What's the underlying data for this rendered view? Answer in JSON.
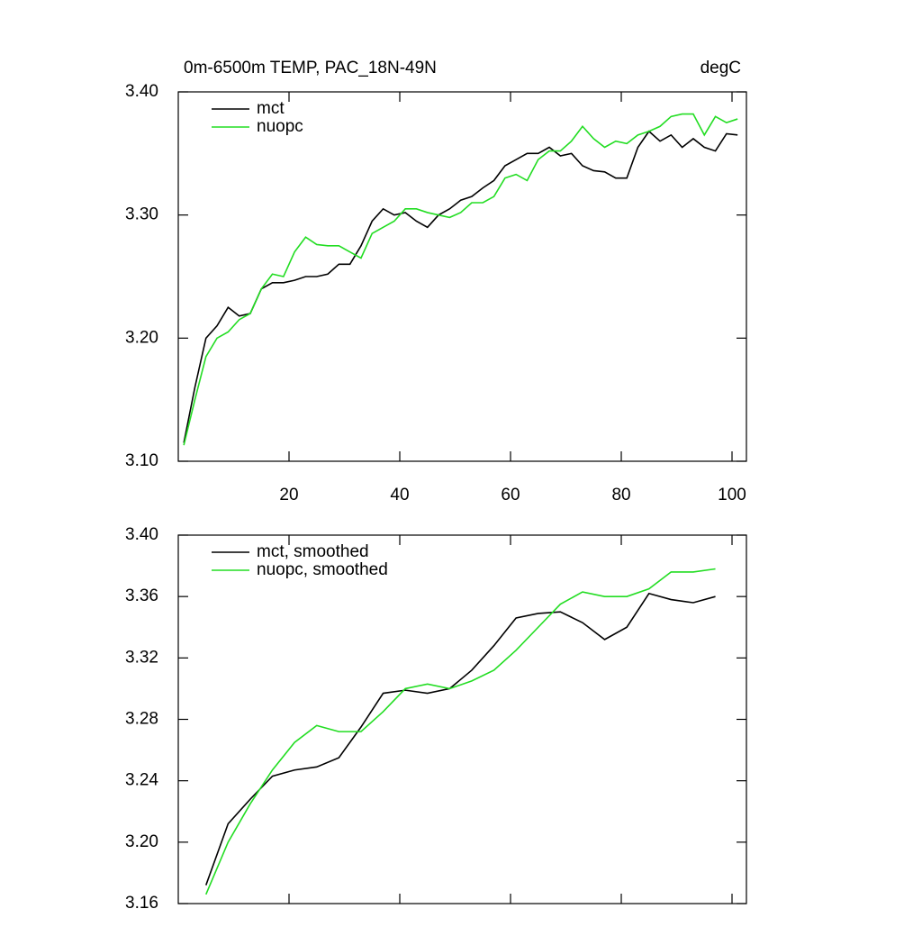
{
  "chart_data": [
    {
      "type": "line",
      "title": "0m-6500m TEMP, PAC_18N-49N",
      "units": "degC",
      "x": [
        1,
        3,
        5,
        7,
        9,
        11,
        13,
        15,
        17,
        19,
        21,
        23,
        25,
        27,
        29,
        31,
        33,
        35,
        37,
        39,
        41,
        43,
        45,
        47,
        49,
        51,
        53,
        55,
        57,
        59,
        61,
        63,
        65,
        67,
        69,
        71,
        73,
        75,
        77,
        79,
        81,
        83,
        85,
        87,
        89,
        91,
        93,
        95,
        97,
        99,
        101
      ],
      "series": [
        {
          "name": "mct",
          "color": "#000000",
          "values": [
            3.115,
            3.16,
            3.2,
            3.21,
            3.225,
            3.218,
            3.22,
            3.24,
            3.245,
            3.245,
            3.247,
            3.25,
            3.25,
            3.252,
            3.26,
            3.26,
            3.275,
            3.295,
            3.305,
            3.3,
            3.302,
            3.295,
            3.29,
            3.3,
            3.305,
            3.312,
            3.315,
            3.322,
            3.328,
            3.34,
            3.345,
            3.35,
            3.35,
            3.355,
            3.348,
            3.35,
            3.34,
            3.336,
            3.335,
            3.33,
            3.33,
            3.355,
            3.368,
            3.36,
            3.365,
            3.355,
            3.362,
            3.355,
            3.352,
            3.366,
            3.365
          ]
        },
        {
          "name": "nuopc",
          "color": "#22dd22",
          "values": [
            3.113,
            3.15,
            3.185,
            3.2,
            3.205,
            3.215,
            3.22,
            3.24,
            3.252,
            3.25,
            3.27,
            3.282,
            3.276,
            3.275,
            3.275,
            3.27,
            3.265,
            3.285,
            3.29,
            3.295,
            3.305,
            3.305,
            3.302,
            3.3,
            3.298,
            3.302,
            3.31,
            3.31,
            3.315,
            3.33,
            3.333,
            3.328,
            3.345,
            3.352,
            3.352,
            3.36,
            3.372,
            3.362,
            3.355,
            3.36,
            3.358,
            3.365,
            3.368,
            3.372,
            3.38,
            3.382,
            3.382,
            3.365,
            3.38,
            3.375,
            3.378
          ]
        }
      ],
      "xlim": [
        0,
        102.6
      ],
      "xticks": [
        20,
        40,
        60,
        80,
        100
      ],
      "show_xtick_labels": true,
      "ylim": [
        3.1,
        3.4
      ],
      "yticks": [
        {
          "value": 3.1,
          "label": "3.10"
        },
        {
          "value": 3.2,
          "label": "3.20"
        },
        {
          "value": 3.3,
          "label": "3.30"
        },
        {
          "value": 3.4,
          "label": "3.40"
        }
      ],
      "legend": "top-left"
    },
    {
      "type": "line",
      "x": [
        5,
        9,
        13,
        17,
        21,
        25,
        29,
        33,
        37,
        41,
        45,
        49,
        53,
        57,
        61,
        65,
        69,
        73,
        77,
        81,
        85,
        89,
        93,
        97
      ],
      "series": [
        {
          "name": "mct, smoothed",
          "color": "#000000",
          "values": [
            3.172,
            3.212,
            3.228,
            3.243,
            3.247,
            3.249,
            3.255,
            3.275,
            3.297,
            3.299,
            3.297,
            3.3,
            3.312,
            3.328,
            3.346,
            3.349,
            3.35,
            3.343,
            3.332,
            3.34,
            3.362,
            3.358,
            3.356,
            3.36
          ]
        },
        {
          "name": "nuopc, smoothed",
          "color": "#22dd22",
          "values": [
            3.166,
            3.2,
            3.225,
            3.247,
            3.265,
            3.276,
            3.272,
            3.272,
            3.285,
            3.3,
            3.303,
            3.3,
            3.305,
            3.312,
            3.325,
            3.34,
            3.355,
            3.363,
            3.36,
            3.36,
            3.365,
            3.376,
            3.376,
            3.378
          ]
        }
      ],
      "xlim": [
        0,
        102.6
      ],
      "xticks": [
        20,
        40,
        60,
        80,
        100
      ],
      "show_xtick_labels": false,
      "ylim": [
        3.16,
        3.4
      ],
      "yticks": [
        {
          "value": 3.16,
          "label": "3.16"
        },
        {
          "value": 3.2,
          "label": "3.20"
        },
        {
          "value": 3.24,
          "label": "3.24"
        },
        {
          "value": 3.28,
          "label": "3.28"
        },
        {
          "value": 3.32,
          "label": "3.32"
        },
        {
          "value": 3.36,
          "label": "3.36"
        },
        {
          "value": 3.4,
          "label": "3.40"
        }
      ],
      "legend": "top-left"
    }
  ]
}
